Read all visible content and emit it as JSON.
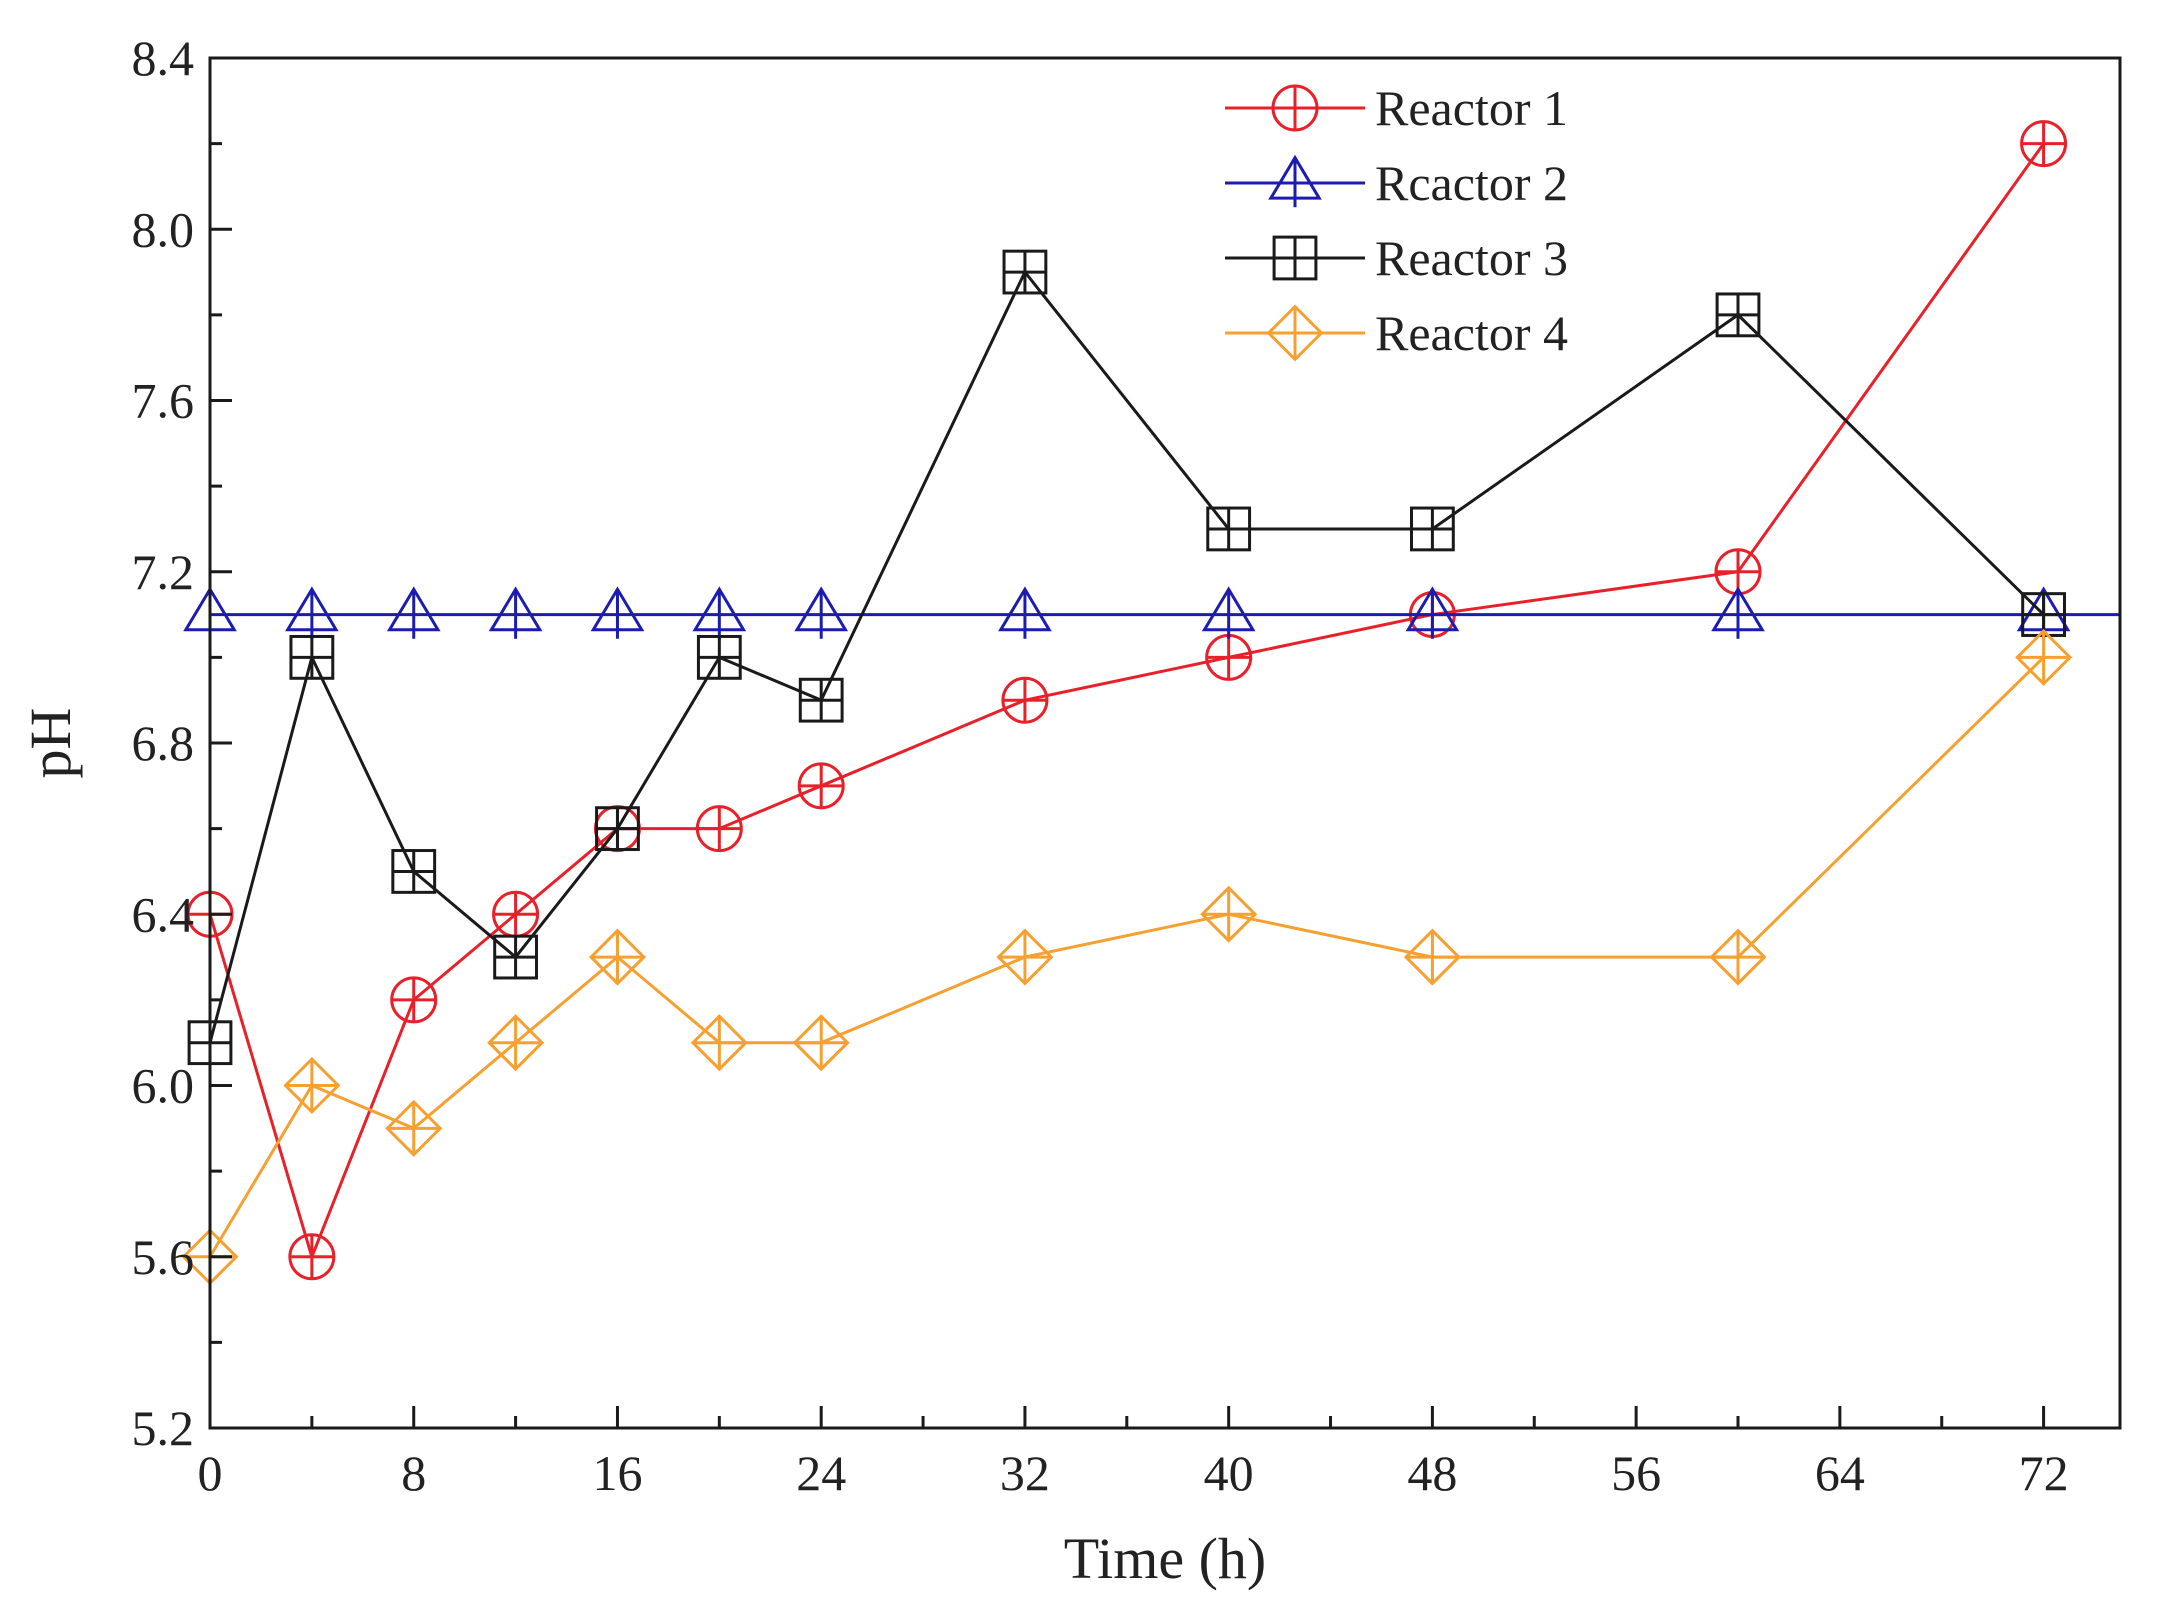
{
  "chart_data": {
    "type": "line",
    "title": "",
    "xlabel": "Time (h)",
    "ylabel": "pH",
    "xlim": [
      0,
      75
    ],
    "ylim": [
      5.2,
      8.4
    ],
    "xticks": [
      0,
      8,
      16,
      24,
      32,
      40,
      48,
      56,
      64,
      72
    ],
    "xtick_labels": [
      "0",
      "8",
      "16",
      "24",
      "32",
      "40",
      "48",
      "56",
      "64",
      "72"
    ],
    "yticks": [
      5.2,
      5.6,
      6.0,
      6.4,
      6.8,
      7.2,
      7.6,
      8.0,
      8.4
    ],
    "ytick_labels": [
      "5.2",
      "5.6",
      "6.0",
      "6.4",
      "6.8",
      "7.2",
      "7.6",
      "8.0",
      "8.4"
    ],
    "grid": false,
    "legend_position": "top-right",
    "series": [
      {
        "name": "Reactor 1",
        "color": "#e8202a",
        "marker": "circle-plus",
        "x": [
          0,
          4,
          8,
          12,
          16,
          20,
          24,
          32,
          40,
          48,
          60,
          72
        ],
        "values": [
          6.4,
          5.6,
          6.2,
          6.4,
          6.6,
          6.6,
          6.7,
          6.9,
          7.0,
          7.1,
          7.2,
          8.2
        ]
      },
      {
        "name": "Rcactor 2",
        "color": "#1c1cb0",
        "marker": "triangle-plus",
        "x": [
          0,
          4,
          8,
          12,
          16,
          20,
          24,
          32,
          40,
          48,
          60,
          72
        ],
        "values": [
          7.1,
          7.1,
          7.1,
          7.1,
          7.1,
          7.1,
          7.1,
          7.1,
          7.1,
          7.1,
          7.1,
          7.1
        ]
      },
      {
        "name": "Reactor 3",
        "color": "#1a1a1a",
        "marker": "square-plus",
        "x": [
          0,
          4,
          8,
          12,
          16,
          20,
          24,
          32,
          40,
          48,
          60,
          72
        ],
        "values": [
          6.1,
          7.0,
          6.5,
          6.3,
          6.6,
          7.0,
          6.9,
          7.9,
          7.3,
          7.3,
          7.8,
          7.1
        ]
      },
      {
        "name": "Reactor 4",
        "color": "#f5a030",
        "marker": "diamond-plus",
        "x": [
          0,
          4,
          8,
          12,
          16,
          20,
          24,
          32,
          40,
          48,
          60,
          72
        ],
        "values": [
          5.6,
          6.0,
          5.9,
          6.1,
          6.3,
          6.1,
          6.1,
          6.3,
          6.4,
          6.3,
          6.3,
          7.0
        ]
      }
    ]
  }
}
